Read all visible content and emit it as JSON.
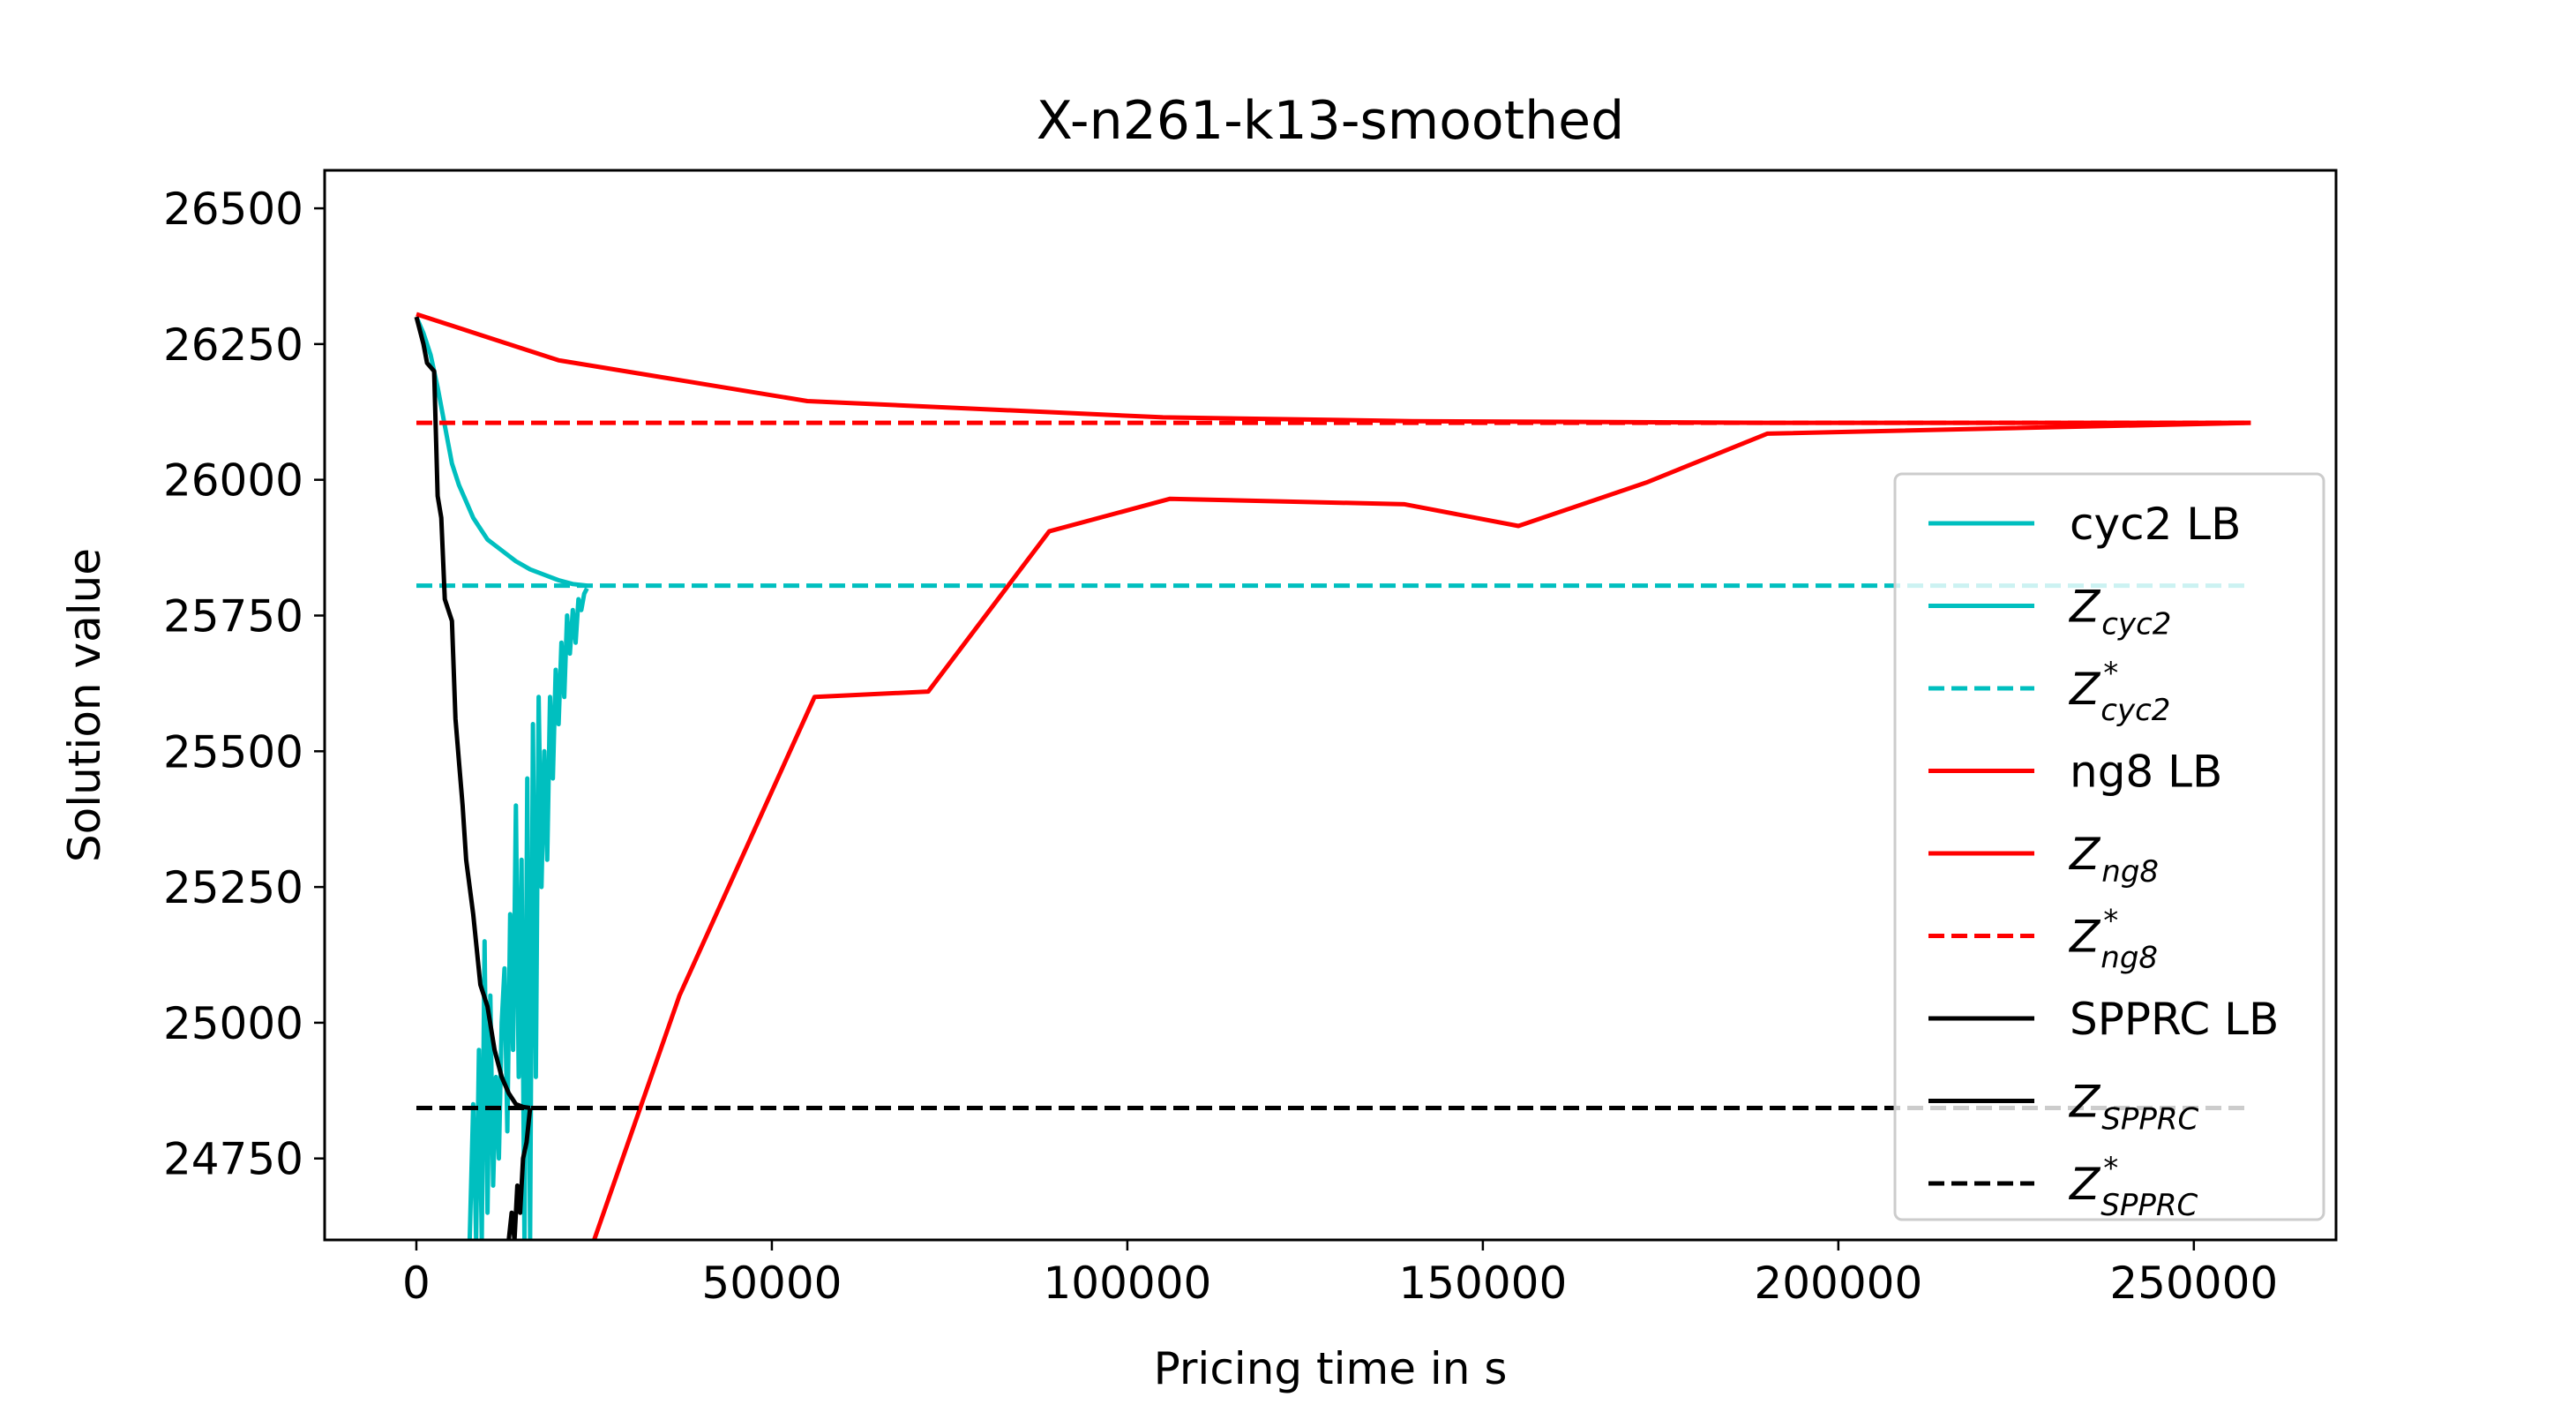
{
  "chart_data": {
    "type": "line",
    "title": "X-n261-k13-smoothed",
    "xlabel": "Pricing time in s",
    "ylabel": "Solution value",
    "xlim": [
      -12900,
      270000
    ],
    "ylim": [
      24600,
      26570
    ],
    "xticks": [
      0,
      50000,
      100000,
      150000,
      200000,
      250000
    ],
    "xtick_labels": [
      "0",
      "50000",
      "100000",
      "150000",
      "200000",
      "250000"
    ],
    "yticks": [
      24750,
      25000,
      25250,
      25500,
      25750,
      26000,
      26250,
      26500
    ],
    "ytick_labels": [
      "24750",
      "25000",
      "25250",
      "25500",
      "25750",
      "26000",
      "26250",
      "26500"
    ],
    "grid": false,
    "legend_position": "right",
    "series": [
      {
        "name": "cyc2 LB",
        "color": "#00bfbf",
        "style": "solid",
        "x": [
          0,
          1000,
          2000,
          3000,
          4000,
          5000,
          6000,
          7000,
          8000,
          9000,
          10000,
          12000,
          14000,
          16000,
          18000,
          20000,
          22000,
          24000
        ],
        "y": [
          26300,
          26270,
          26230,
          26170,
          26100,
          26030,
          25990,
          25960,
          25930,
          25910,
          25890,
          25870,
          25850,
          25835,
          25825,
          25815,
          25808,
          25805
        ]
      },
      {
        "name": "Z_cyc2",
        "color": "#00bfbf",
        "style": "solid",
        "x": [
          7500,
          8000,
          8400,
          8800,
          9200,
          9600,
          10000,
          10400,
          10800,
          11200,
          11600,
          12000,
          12400,
          12800,
          13200,
          13600,
          14000,
          14400,
          14800,
          15200,
          15600,
          16000,
          16400,
          16800,
          17200,
          17600,
          18000,
          18400,
          18800,
          19200,
          19600,
          20000,
          20400,
          20800,
          21200,
          21600,
          22000,
          22400,
          22800,
          23200,
          23600,
          24000
        ],
        "y": [
          24600,
          24850,
          24600,
          24950,
          24600,
          25150,
          24650,
          25050,
          24700,
          24900,
          24750,
          25000,
          25100,
          24800,
          25200,
          24950,
          25400,
          24900,
          25300,
          24600,
          25450,
          24600,
          25550,
          24900,
          25600,
          25250,
          25500,
          25300,
          25600,
          25450,
          25650,
          25550,
          25700,
          25600,
          25750,
          25680,
          25760,
          25700,
          25780,
          25760,
          25790,
          25800
        ]
      },
      {
        "name": "Z*_cyc2",
        "color": "#00bfbf",
        "style": "dashed",
        "x": [
          0,
          258000
        ],
        "y": [
          25805,
          25805
        ]
      },
      {
        "name": "ng8 LB",
        "color": "#ff0000",
        "style": "solid",
        "x": [
          0,
          20000,
          55000,
          105000,
          140000,
          190000,
          258000
        ],
        "y": [
          26305,
          26220,
          26145,
          26115,
          26108,
          26105,
          26105
        ]
      },
      {
        "name": "Z_ng8",
        "color": "#ff0000",
        "style": "solid",
        "x": [
          25000,
          37000,
          56000,
          72000,
          89000,
          106000,
          139000,
          155000,
          173000,
          190000,
          258000
        ],
        "y": [
          24600,
          25050,
          25600,
          25610,
          25905,
          25965,
          25955,
          25915,
          25995,
          26085,
          26105
        ]
      },
      {
        "name": "Z*_ng8",
        "color": "#ff0000",
        "style": "dashed",
        "x": [
          0,
          258000
        ],
        "y": [
          26105,
          26105
        ]
      },
      {
        "name": "SPPRC LB",
        "color": "#000000",
        "style": "solid",
        "x": [
          0,
          1000,
          1500,
          2500,
          3000,
          3500,
          4000,
          5000,
          5500,
          6000,
          6500,
          7000,
          8000,
          9000,
          10000,
          11000,
          12000,
          13000,
          14000,
          15000,
          16000
        ],
        "y": [
          26300,
          26250,
          26215,
          26200,
          25970,
          25930,
          25780,
          25740,
          25560,
          25480,
          25400,
          25300,
          25200,
          25070,
          25030,
          24950,
          24900,
          24870,
          24850,
          24845,
          24843
        ]
      },
      {
        "name": "Z_SPPRC",
        "color": "#000000",
        "style": "solid",
        "x": [
          13000,
          13400,
          13800,
          14200,
          14600,
          15000,
          15500,
          16000
        ],
        "y": [
          24600,
          24650,
          24600,
          24700,
          24650,
          24750,
          24780,
          24843
        ]
      },
      {
        "name": "Z*_SPPRC",
        "color": "#000000",
        "style": "dashed",
        "x": [
          0,
          258000
        ],
        "y": [
          24843,
          24843
        ]
      }
    ],
    "legend": [
      {
        "text": "cyc2 LB",
        "base": "",
        "sub": "",
        "sup": "",
        "color": "#00bfbf",
        "style": "solid"
      },
      {
        "text": "",
        "base": "Z",
        "sub": "cyc2",
        "sup": "",
        "color": "#00bfbf",
        "style": "solid"
      },
      {
        "text": "",
        "base": "Z",
        "sub": "cyc2",
        "sup": "*",
        "color": "#00bfbf",
        "style": "dashed"
      },
      {
        "text": "ng8 LB",
        "base": "",
        "sub": "",
        "sup": "",
        "color": "#ff0000",
        "style": "solid"
      },
      {
        "text": "",
        "base": "Z",
        "sub": "ng8",
        "sup": "",
        "color": "#ff0000",
        "style": "solid"
      },
      {
        "text": "",
        "base": "Z",
        "sub": "ng8",
        "sup": "*",
        "color": "#ff0000",
        "style": "dashed"
      },
      {
        "text": "SPPRC LB",
        "base": "",
        "sub": "",
        "sup": "",
        "color": "#000000",
        "style": "solid"
      },
      {
        "text": "",
        "base": "Z",
        "sub": "SPPRC",
        "sup": "",
        "color": "#000000",
        "style": "solid"
      },
      {
        "text": "",
        "base": "Z",
        "sub": "SPPRC",
        "sup": "*",
        "color": "#000000",
        "style": "dashed"
      }
    ]
  }
}
